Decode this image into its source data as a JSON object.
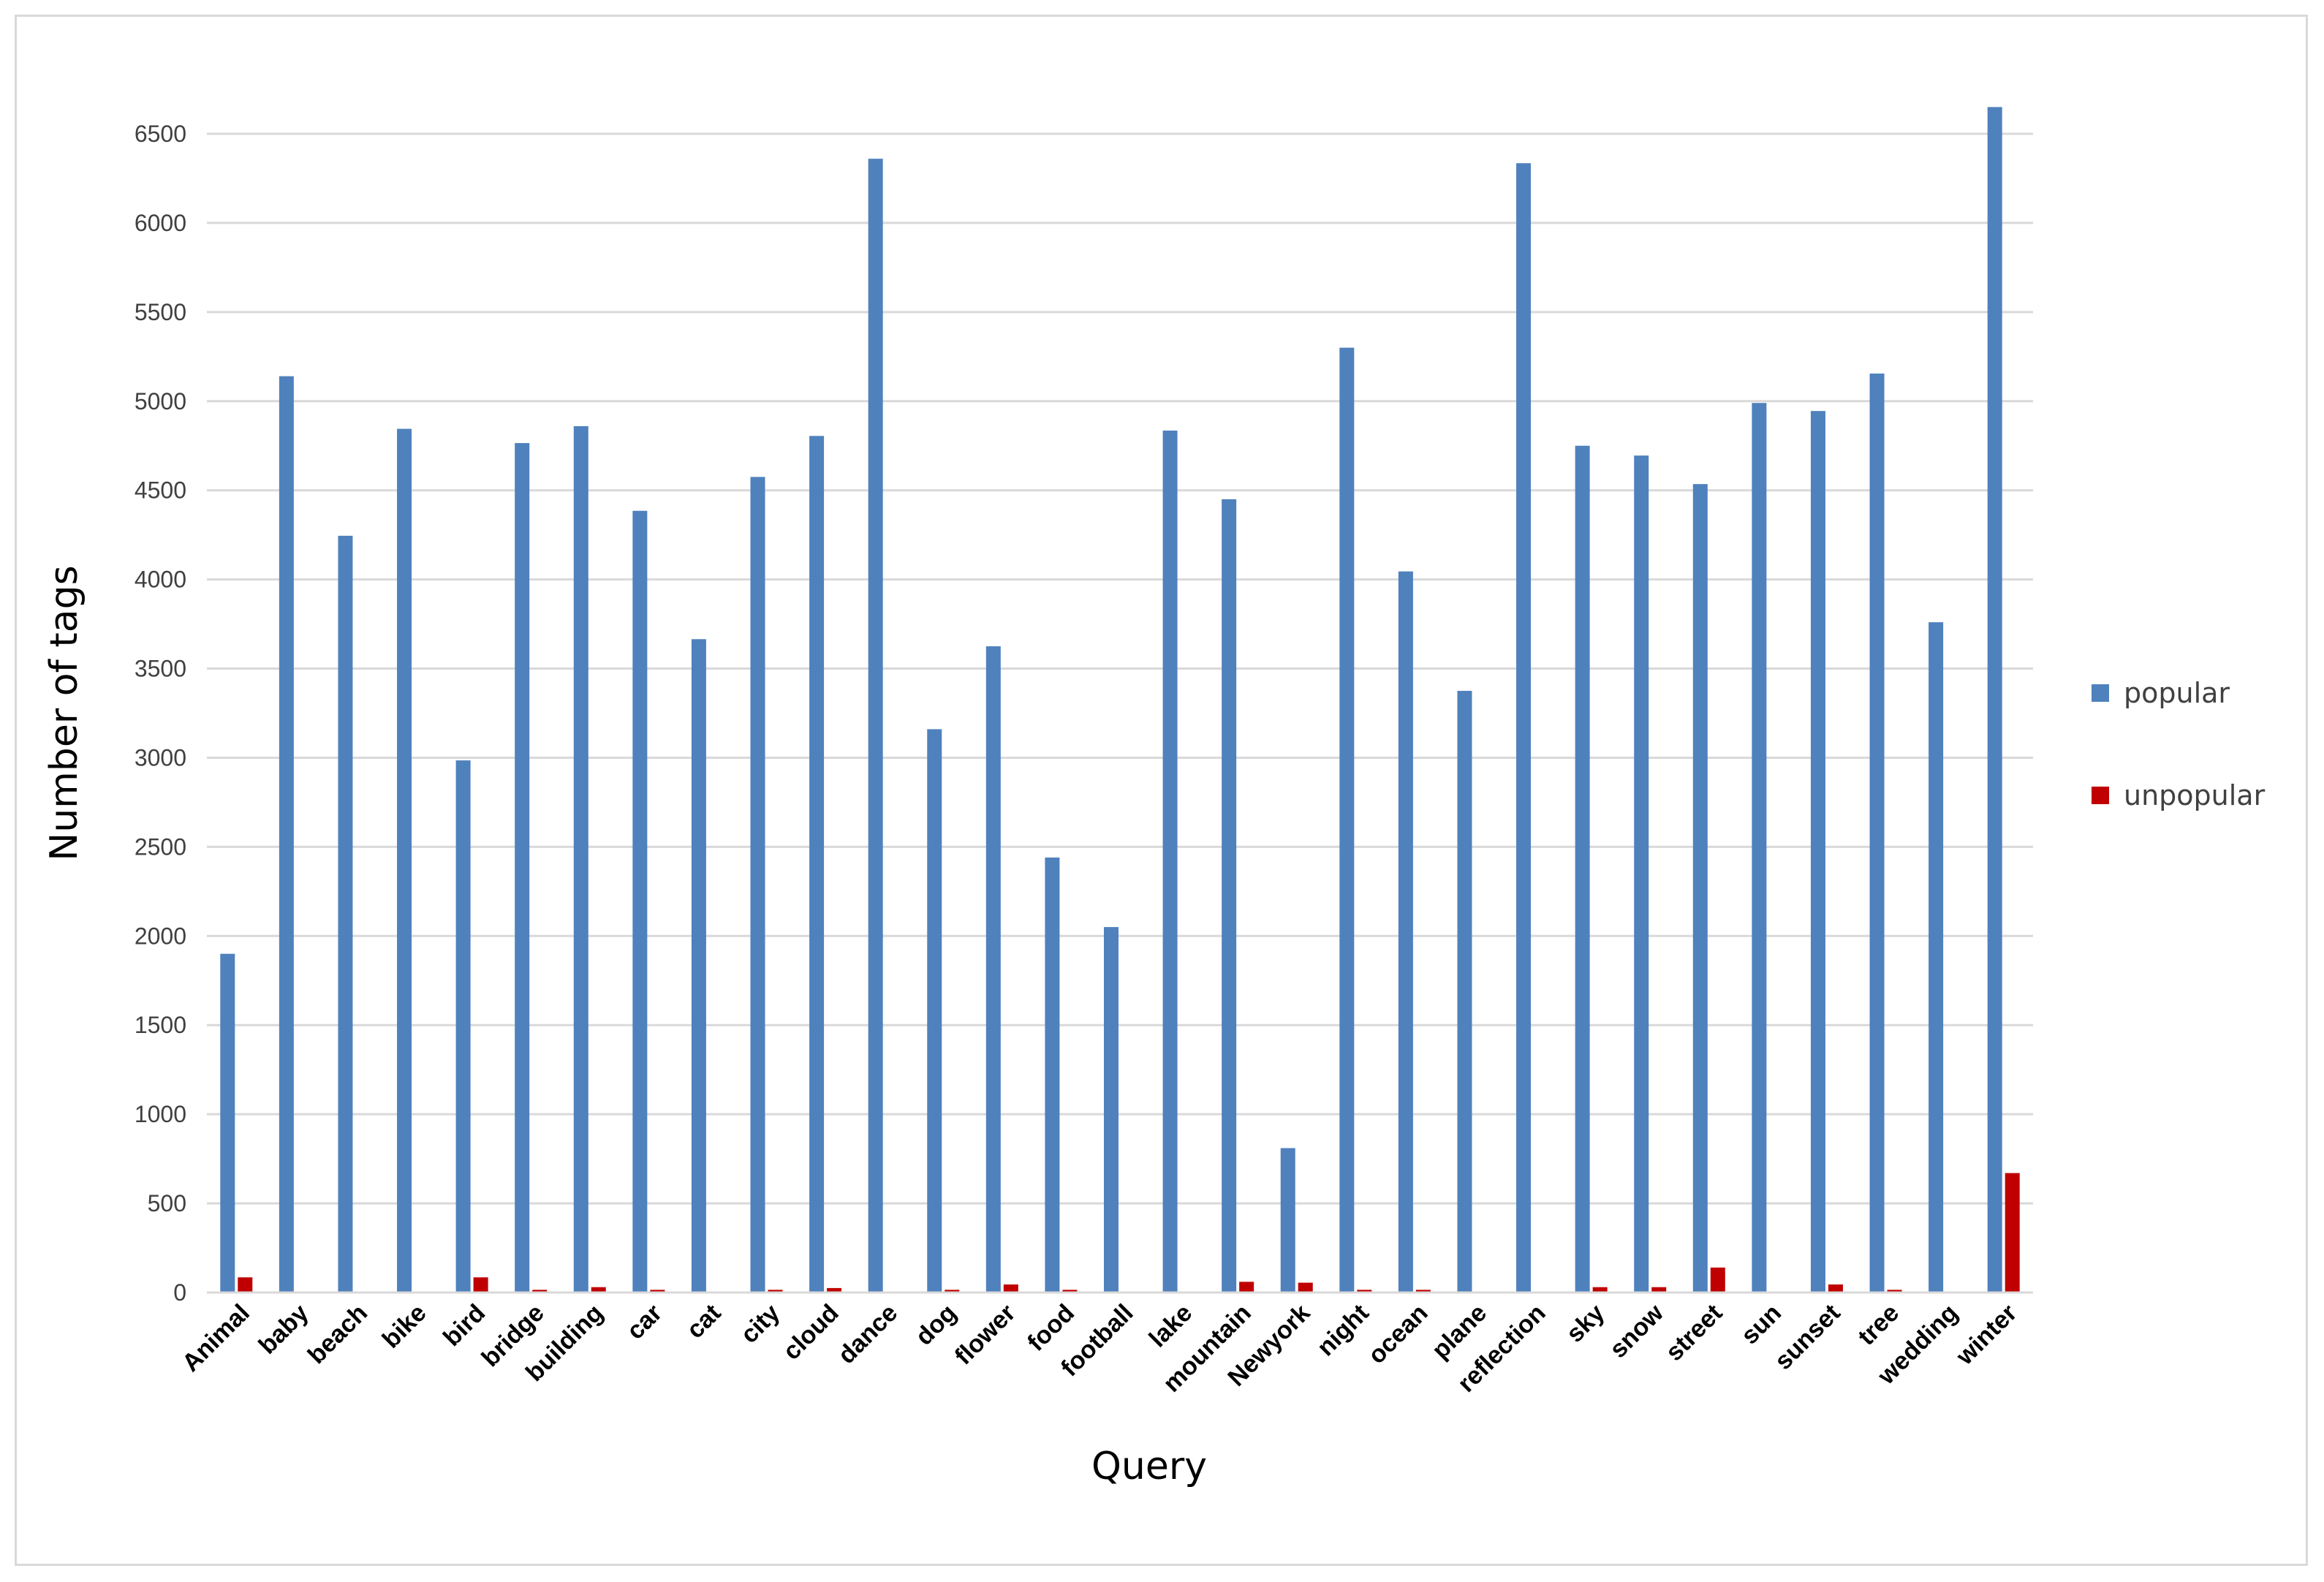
{
  "chart_data": {
    "type": "bar",
    "xlabel": "Query",
    "ylabel": "Number of tags",
    "ylim": [
      0,
      6500
    ],
    "ytick_step": 500,
    "grid": true,
    "legend_position": "right",
    "categories": [
      "Animal",
      "baby",
      "beach",
      "bike",
      "bird",
      "bridge",
      "building",
      "car",
      "cat",
      "city",
      "cloud",
      "dance",
      "dog",
      "flower",
      "food",
      "football",
      "lake",
      "mountain",
      "Newyork",
      "night",
      "ocean",
      "plane",
      "reflection",
      "sky",
      "snow",
      "street",
      "sun",
      "sunset",
      "tree",
      "wedding",
      "winter"
    ],
    "series": [
      {
        "name": "popular",
        "color": "#4f81bd",
        "values": [
          1900,
          5140,
          4245,
          4845,
          2985,
          4765,
          4860,
          4385,
          3665,
          4575,
          4805,
          6360,
          3160,
          3625,
          2440,
          2050,
          4835,
          4450,
          810,
          5300,
          4045,
          3375,
          6335,
          4750,
          4695,
          4535,
          4990,
          4945,
          5155,
          3760,
          6650
        ]
      },
      {
        "name": "unpopular",
        "color": "#c00000",
        "values": [
          85,
          0,
          0,
          0,
          85,
          15,
          30,
          15,
          0,
          15,
          25,
          0,
          15,
          45,
          15,
          0,
          0,
          60,
          55,
          15,
          15,
          0,
          0,
          30,
          30,
          140,
          0,
          45,
          15,
          0,
          670
        ]
      }
    ]
  }
}
